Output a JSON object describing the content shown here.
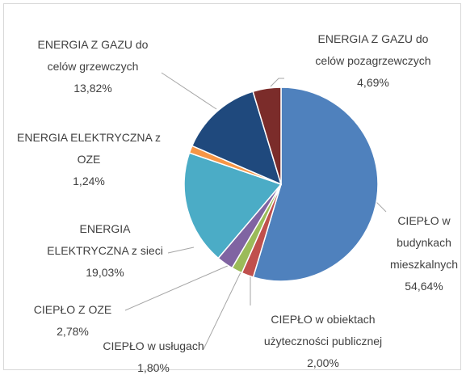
{
  "chart_data": {
    "type": "pie",
    "categories": [
      "CIEPŁO w budynkach mieszkalnych",
      "CIEPŁO w obiektach użyteczności publicznej",
      "CIEPŁO w usługach",
      "CIEPŁO Z OZE",
      "ENERGIA ELEKTRYCZNA z sieci",
      "ENERGIA ELEKTRYCZNA z OZE",
      "ENERGIA Z GAZU do celów grzewczych",
      "ENERGIA Z GAZU do celów pozagrzewczych"
    ],
    "values": [
      54.64,
      2.0,
      1.8,
      2.78,
      19.03,
      1.24,
      13.82,
      4.69
    ],
    "value_labels": [
      "54,64%",
      "2,00%",
      "1,80%",
      "2,78%",
      "19,03%",
      "1,24%",
      "13,82%",
      "4,69%"
    ],
    "colors": [
      "#4f81bd",
      "#c0504d",
      "#9bbb59",
      "#8064a2",
      "#4bacc6",
      "#f79646",
      "#1f497d",
      "#7b2c2a"
    ]
  }
}
